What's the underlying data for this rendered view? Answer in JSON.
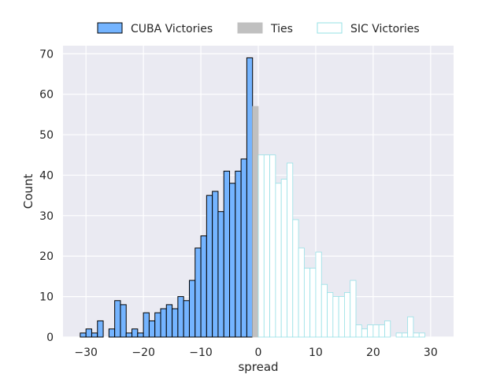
{
  "chart_data": {
    "type": "bar",
    "xlabel": "spread",
    "ylabel": "Count",
    "xlim": [
      -34,
      34
    ],
    "ylim": [
      0,
      72
    ],
    "x_ticks": [
      -30,
      -20,
      -10,
      0,
      10,
      20,
      30
    ],
    "x_tick_labels": [
      "−30",
      "−20",
      "−10",
      "0",
      "10",
      "20",
      "30"
    ],
    "y_ticks": [
      0,
      10,
      20,
      30,
      40,
      50,
      60,
      70
    ],
    "grid": true,
    "legend_placement": "top-center",
    "bin_width": 1,
    "series": [
      {
        "name": "CUBA Victories",
        "color": "#74b4ff",
        "edge_color": "#000000",
        "bin_starts": [
          -31,
          -30,
          -29,
          -28,
          -27,
          -26,
          -25,
          -24,
          -23,
          -22,
          -21,
          -20,
          -19,
          -18,
          -17,
          -16,
          -15,
          -14,
          -13,
          -12,
          -11,
          -10,
          -9,
          -8,
          -7,
          -6,
          -5,
          -4,
          -3,
          -2,
          -1
        ],
        "values": [
          1,
          2,
          1,
          4,
          0,
          2,
          9,
          8,
          1,
          2,
          1,
          6,
          4,
          6,
          7,
          8,
          7,
          10,
          9,
          14,
          22,
          25,
          35,
          36,
          31,
          41,
          38,
          41,
          44,
          69,
          0
        ]
      },
      {
        "name": "Ties",
        "color": "#c0c0c0",
        "edge_color": "#c0c0c0",
        "bin_starts": [
          -1
        ],
        "values": [
          57
        ]
      },
      {
        "name": "SIC Victories",
        "color": "#ffffff",
        "edge_color": "#96e0e6",
        "bin_starts": [
          0,
          1,
          2,
          3,
          4,
          5,
          6,
          7,
          8,
          9,
          10,
          11,
          12,
          13,
          14,
          15,
          16,
          17,
          18,
          19,
          20,
          21,
          22,
          23,
          24,
          25,
          26,
          27,
          28,
          29,
          30
        ],
        "values": [
          45,
          45,
          45,
          38,
          39,
          43,
          29,
          22,
          17,
          17,
          21,
          13,
          11,
          10,
          10,
          11,
          14,
          3,
          2,
          3,
          3,
          3,
          4,
          0,
          1,
          1,
          5,
          1,
          1,
          0,
          0
        ]
      }
    ]
  }
}
